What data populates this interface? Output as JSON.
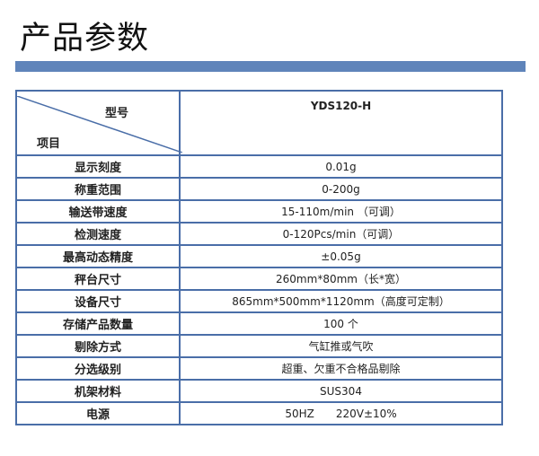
{
  "title": "产品参数",
  "table": {
    "header": {
      "model_label": "型号",
      "item_label": "项目",
      "model": "YDS120-H"
    },
    "rows": [
      {
        "key": "显示刻度",
        "value": "0.01g"
      },
      {
        "key": "称重范围",
        "value": "0-200g"
      },
      {
        "key": "输送带速度",
        "value": "15-110m/min （可调）"
      },
      {
        "key": "检测速度",
        "value": "0-120Pcs/min（可调）"
      },
      {
        "key": "最高动态精度",
        "value": "±0.05g"
      },
      {
        "key": "秤台尺寸",
        "value": "260mm*80mm（长*宽）"
      },
      {
        "key": "设备尺寸",
        "value": "865mm*500mm*1120mm（高度可定制）"
      },
      {
        "key": "存储产品数量",
        "value": "100 个"
      },
      {
        "key": "剔除方式",
        "value": "气缸推或气吹"
      },
      {
        "key": "分选级别",
        "value": "超重、欠重不合格品剔除"
      },
      {
        "key": "机架材料",
        "value": "SUS304"
      },
      {
        "key": "电源",
        "value": "50HZ　　220V±10%"
      }
    ]
  },
  "colors": {
    "accent": "#5f84ba",
    "border": "#4a6ea8"
  }
}
